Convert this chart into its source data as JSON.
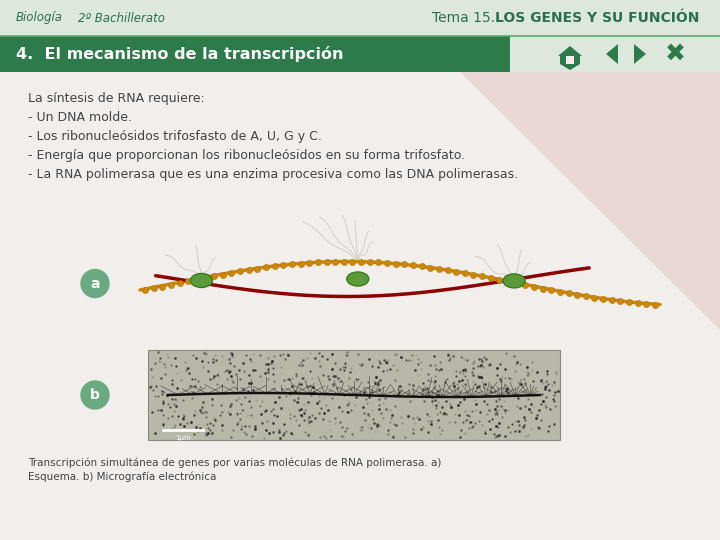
{
  "background_color": "#dce8dc",
  "header_bg": "#dce8dc",
  "header_text_left1": "Biología",
  "header_text_left2": "2º Bachillerato",
  "header_text_right_normal": "Tema 15. ",
  "header_text_right_bold": "LOS GENES Y SU FUNCIÓN",
  "header_text_color": "#2d6e4e",
  "green_bar_text": "4.  El mecanismo de la transcripción",
  "green_bar_color": "#2d7a4a",
  "green_bar_text_color": "#ffffff",
  "body_bg": "#f2eeeb",
  "pink_triangle_color": "#e8d5d0",
  "body_lines": [
    "La síntesis de RNA requiere:",
    "- Un DNA molde.",
    "- Los ribonucleósidos trifosfasto de A, U, G y C.",
    "- Energía que proporcionan los ribonucleósidos en su forma trifosfato.",
    "- La RNA polimerasa que es una enzima procesiva como las DNA polimerasas."
  ],
  "label_a": "a",
  "label_b": "b",
  "caption_line1": "Transcripción simultánea de genes por varias moléculas de RNA polimerasa. a)",
  "caption_line2": "Esquema. b) Micrografía electrónica",
  "text_color": "#444444",
  "label_bg_color": "#6aaa80",
  "label_text_color": "#ffffff",
  "nav_color": "#2d7a4a",
  "separator_color": "#5aaa6a",
  "dna_color1": "#8b0000",
  "dna_color2": "#cc8800",
  "rna_branch_color": "#cccccc",
  "dot_color": "#6aaa30"
}
